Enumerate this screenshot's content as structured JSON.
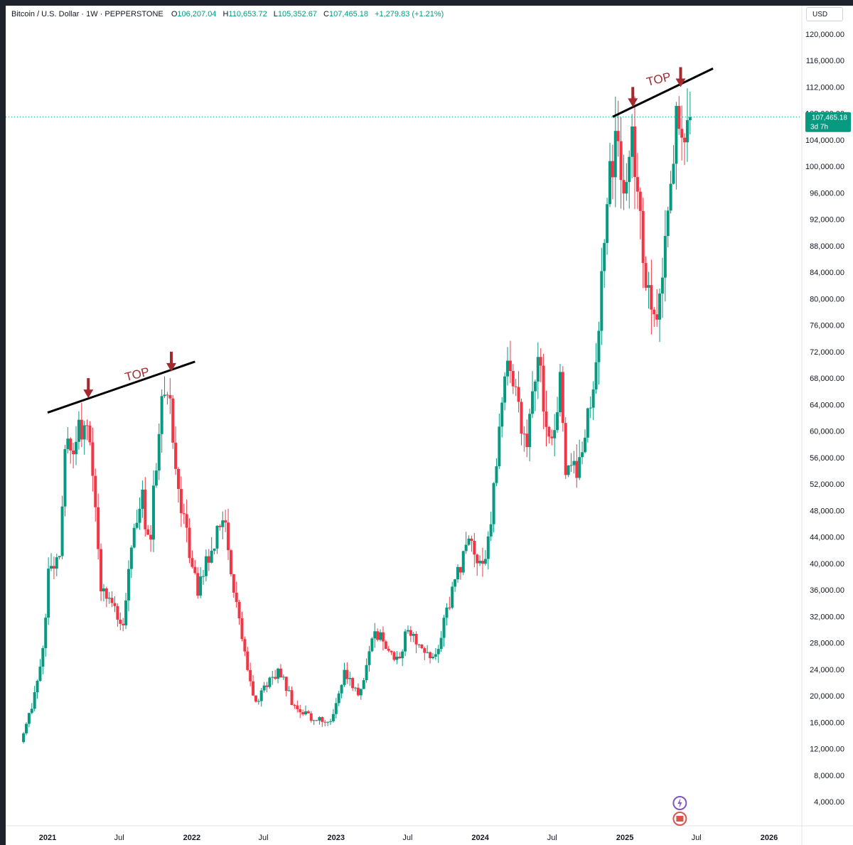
{
  "legend": {
    "symbol": "Bitcoin / U.S. Dollar · 1W · PEPPERSTONE",
    "open_label": "O",
    "open": "106,207.04",
    "high_label": "H",
    "high": "110,653.72",
    "low_label": "L",
    "low": "105,352.67",
    "close_label": "C",
    "close": "107,465.18",
    "change": "+1,279.83 (+1.21%)"
  },
  "currency": "USD",
  "price_tag": {
    "price": "107,465.18",
    "countdown": "3d 7h"
  },
  "colors": {
    "up": "#089981",
    "down": "#f23645",
    "annotation": "#a32a2e",
    "trendline": "#000000"
  },
  "annotations": [
    {
      "text": "TOP"
    },
    {
      "text": "TOP"
    }
  ],
  "chart_data": {
    "type": "candlestick",
    "title": "Bitcoin / U.S. Dollar · 1W · PEPPERSTONE",
    "y_axis": {
      "ticks": [
        4000,
        8000,
        12000,
        16000,
        20000,
        24000,
        28000,
        32000,
        36000,
        40000,
        44000,
        48000,
        52000,
        56000,
        60000,
        64000,
        68000,
        72000,
        76000,
        80000,
        84000,
        88000,
        92000,
        96000,
        100000,
        104000,
        108000,
        112000,
        116000,
        120000
      ],
      "tick_labels": [
        "4,000.00",
        "8,000.00",
        "12,000.00",
        "16,000.00",
        "20,000.00",
        "24,000.00",
        "28,000.00",
        "32,000.00",
        "36,000.00",
        "40,000.00",
        "44,000.00",
        "48,000.00",
        "52,000.00",
        "56,000.00",
        "60,000.00",
        "64,000.00",
        "68,000.00",
        "72,000.00",
        "76,000.00",
        "80,000.00",
        "84,000.00",
        "88,000.00",
        "92,000.00",
        "96,000.00",
        "100,000.00",
        "104,000.00",
        "108,000.00",
        "112,000.00",
        "116,000.00",
        "120,000.00"
      ],
      "range": [
        0,
        124000
      ]
    },
    "x_axis": {
      "labels": [
        "2021",
        "Jul",
        "2022",
        "Jul",
        "2023",
        "Jul",
        "2024",
        "Jul",
        "2025",
        "Jul",
        "2026"
      ],
      "label_dates": [
        "2021-01-01",
        "2021-07-01",
        "2022-01-01",
        "2022-07-01",
        "2023-01-01",
        "2023-07-01",
        "2024-01-01",
        "2024-07-01",
        "2025-01-01",
        "2025-07-01",
        "2026-01-01"
      ],
      "bold_years": [
        "2021",
        "2022",
        "2023",
        "2024",
        "2025",
        "2026"
      ]
    },
    "anchors": [
      [
        "2020-11-01",
        13000
      ],
      [
        "2020-12-01",
        18500
      ],
      [
        "2020-12-25",
        26000
      ],
      [
        "2021-01-10",
        38000
      ],
      [
        "2021-02-05",
        40000
      ],
      [
        "2021-02-20",
        57000
      ],
      [
        "2021-03-15",
        58000
      ],
      [
        "2021-04-14",
        62000
      ],
      [
        "2021-05-12",
        48000
      ],
      [
        "2021-05-20",
        36000
      ],
      [
        "2021-06-20",
        33000
      ],
      [
        "2021-07-20",
        31000
      ],
      [
        "2021-08-10",
        45000
      ],
      [
        "2021-09-05",
        50000
      ],
      [
        "2021-09-22",
        42000
      ],
      [
        "2021-10-20",
        63000
      ],
      [
        "2021-11-10",
        67000
      ],
      [
        "2021-12-05",
        50000
      ],
      [
        "2022-01-22",
        36000
      ],
      [
        "2022-03-28",
        47000
      ],
      [
        "2022-05-10",
        30000
      ],
      [
        "2022-06-18",
        19000
      ],
      [
        "2022-08-14",
        24000
      ],
      [
        "2022-09-20",
        19000
      ],
      [
        "2022-11-09",
        16500
      ],
      [
        "2022-12-30",
        16600
      ],
      [
        "2023-01-30",
        23500
      ],
      [
        "2023-03-10",
        20000
      ],
      [
        "2023-04-14",
        30000
      ],
      [
        "2023-06-15",
        25000
      ],
      [
        "2023-07-10",
        30500
      ],
      [
        "2023-08-20",
        26000
      ],
      [
        "2023-09-20",
        27000
      ],
      [
        "2023-10-25",
        34500
      ],
      [
        "2023-12-05",
        43000
      ],
      [
        "2024-01-22",
        40000
      ],
      [
        "2024-02-28",
        61000
      ],
      [
        "2024-03-14",
        71000
      ],
      [
        "2024-05-01",
        58000
      ],
      [
        "2024-06-05",
        70000
      ],
      [
        "2024-07-05",
        56000
      ],
      [
        "2024-07-29",
        68000
      ],
      [
        "2024-08-07",
        55000
      ],
      [
        "2024-09-06",
        53500
      ],
      [
        "2024-10-28",
        70000
      ],
      [
        "2024-11-12",
        88000
      ],
      [
        "2024-12-17",
        106000
      ],
      [
        "2025-01-08",
        94000
      ],
      [
        "2025-01-21",
        105000
      ],
      [
        "2025-02-05",
        98000
      ],
      [
        "2025-02-28",
        83000
      ],
      [
        "2025-03-12",
        80000
      ],
      [
        "2025-04-07",
        78000
      ],
      [
        "2025-04-25",
        94000
      ],
      [
        "2025-05-10",
        103000
      ],
      [
        "2025-05-22",
        109000
      ],
      [
        "2025-06-05",
        105000
      ],
      [
        "2025-06-15",
        107465
      ]
    ],
    "last_close": 107465.18,
    "trendlines": [
      {
        "from": [
          "2021-01-01",
          62800
        ],
        "to": [
          "2022-01-09",
          70500
        ]
      },
      {
        "from": [
          "2024-12-01",
          107500
        ],
        "to": [
          "2025-08-12",
          114800
        ]
      }
    ],
    "top_markers": [
      {
        "label": "TOP",
        "arrows": [
          [
            "2021-04-14",
            65000
          ],
          [
            "2021-11-10",
            69000
          ]
        ],
        "label_at": [
          "2021-08-18",
          68000
        ]
      },
      {
        "label": "TOP",
        "arrows": [
          [
            "2025-01-21",
            109000
          ],
          [
            "2025-05-22",
            112000
          ]
        ],
        "label_at": [
          "2025-03-30",
          112600
        ]
      }
    ],
    "grid": false
  }
}
